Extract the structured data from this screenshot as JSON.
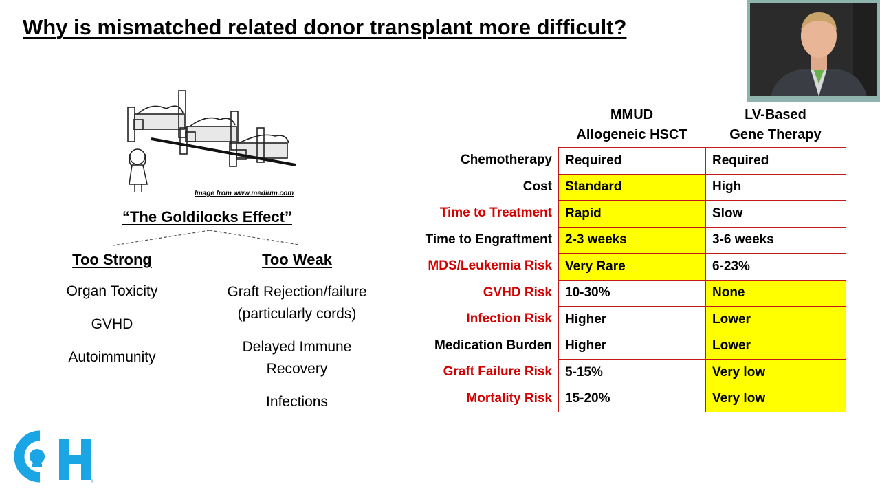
{
  "slide": {
    "title": "Why is mismatched related donor transplant more difficult?"
  },
  "image_credit": "Image from www.medium.com",
  "goldilocks": {
    "label": "“The Goldilocks Effect”",
    "too_strong": {
      "heading": "Too Strong",
      "items": [
        "Organ Toxicity",
        "GVHD",
        "Autoimmunity"
      ]
    },
    "too_weak": {
      "heading": "Too Weak",
      "items": [
        "Graft Rejection/failure",
        "(particularly cords)",
        "Delayed Immune",
        "Recovery",
        "Infections"
      ]
    }
  },
  "comparison": {
    "headers": [
      {
        "line1": "MMUD",
        "line2": "Allogeneic HSCT"
      },
      {
        "line1": "LV-Based",
        "line2": "Gene Therapy"
      }
    ],
    "rows": [
      {
        "label": "Chemotherapy",
        "a": "Required",
        "b": "Required",
        "label_red": false,
        "a_yellow": false,
        "b_yellow": false
      },
      {
        "label": "Cost",
        "a": "Standard",
        "b": "High",
        "label_red": false,
        "a_yellow": true,
        "b_yellow": false
      },
      {
        "label": "Time to Treatment",
        "a": "Rapid",
        "b": "Slow",
        "label_red": true,
        "a_yellow": true,
        "b_yellow": false
      },
      {
        "label": "Time to Engraftment",
        "a": "2-3 weeks",
        "b": "3-6 weeks",
        "label_red": false,
        "a_yellow": true,
        "b_yellow": false
      },
      {
        "label": "MDS/Leukemia Risk",
        "a": "Very Rare",
        "b": "6-23%",
        "label_red": true,
        "a_yellow": true,
        "b_yellow": false
      },
      {
        "label": "GVHD Risk",
        "a": "10-30%",
        "b": "None",
        "label_red": true,
        "a_yellow": false,
        "b_yellow": true
      },
      {
        "label": "Infection Risk",
        "a": "Higher",
        "b": "Lower",
        "label_red": true,
        "a_yellow": false,
        "b_yellow": true
      },
      {
        "label": "Medication Burden",
        "a": "Higher",
        "b": "Lower",
        "label_red": false,
        "a_yellow": false,
        "b_yellow": true
      },
      {
        "label": "Graft Failure Risk",
        "a": "5-15%",
        "b": "Very low",
        "label_red": true,
        "a_yellow": false,
        "b_yellow": true
      },
      {
        "label": "Mortality Risk",
        "a": "15-20%",
        "b": "Very low",
        "label_red": true,
        "a_yellow": false,
        "b_yellow": true
      }
    ]
  },
  "colors": {
    "highlight": "#ffff00",
    "risk_label": "#d40000",
    "table_border": "#c21a1a",
    "logo": "#1aa6e4",
    "video_frame": "#8fb3ad"
  },
  "icons": {
    "logo": "ch-hospital-logo-icon",
    "cartoon": "goldilocks-beds-illustration"
  }
}
